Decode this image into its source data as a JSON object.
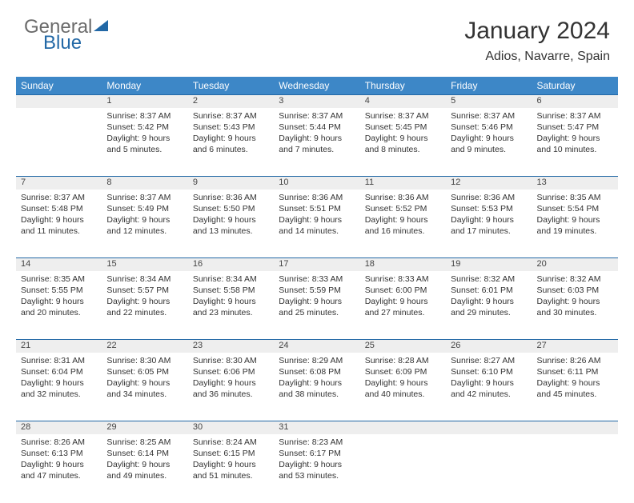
{
  "logo": {
    "text1": "General",
    "text2": "Blue"
  },
  "title": "January 2024",
  "location": "Adios, Navarre, Spain",
  "colors": {
    "header_bg": "#3d87c7",
    "header_text": "#ffffff",
    "daynum_bg": "#eeeeee",
    "row_border": "#2268a6",
    "body_text": "#333333",
    "logo_gray": "#6b6b6b",
    "logo_blue": "#2268a6",
    "page_bg": "#ffffff"
  },
  "weekdays": [
    "Sunday",
    "Monday",
    "Tuesday",
    "Wednesday",
    "Thursday",
    "Friday",
    "Saturday"
  ],
  "weeks": [
    [
      null,
      {
        "n": "1",
        "sunrise": "8:37 AM",
        "sunset": "5:42 PM",
        "daylight": "9 hours and 5 minutes."
      },
      {
        "n": "2",
        "sunrise": "8:37 AM",
        "sunset": "5:43 PM",
        "daylight": "9 hours and 6 minutes."
      },
      {
        "n": "3",
        "sunrise": "8:37 AM",
        "sunset": "5:44 PM",
        "daylight": "9 hours and 7 minutes."
      },
      {
        "n": "4",
        "sunrise": "8:37 AM",
        "sunset": "5:45 PM",
        "daylight": "9 hours and 8 minutes."
      },
      {
        "n": "5",
        "sunrise": "8:37 AM",
        "sunset": "5:46 PM",
        "daylight": "9 hours and 9 minutes."
      },
      {
        "n": "6",
        "sunrise": "8:37 AM",
        "sunset": "5:47 PM",
        "daylight": "9 hours and 10 minutes."
      }
    ],
    [
      {
        "n": "7",
        "sunrise": "8:37 AM",
        "sunset": "5:48 PM",
        "daylight": "9 hours and 11 minutes."
      },
      {
        "n": "8",
        "sunrise": "8:37 AM",
        "sunset": "5:49 PM",
        "daylight": "9 hours and 12 minutes."
      },
      {
        "n": "9",
        "sunrise": "8:36 AM",
        "sunset": "5:50 PM",
        "daylight": "9 hours and 13 minutes."
      },
      {
        "n": "10",
        "sunrise": "8:36 AM",
        "sunset": "5:51 PM",
        "daylight": "9 hours and 14 minutes."
      },
      {
        "n": "11",
        "sunrise": "8:36 AM",
        "sunset": "5:52 PM",
        "daylight": "9 hours and 16 minutes."
      },
      {
        "n": "12",
        "sunrise": "8:36 AM",
        "sunset": "5:53 PM",
        "daylight": "9 hours and 17 minutes."
      },
      {
        "n": "13",
        "sunrise": "8:35 AM",
        "sunset": "5:54 PM",
        "daylight": "9 hours and 19 minutes."
      }
    ],
    [
      {
        "n": "14",
        "sunrise": "8:35 AM",
        "sunset": "5:55 PM",
        "daylight": "9 hours and 20 minutes."
      },
      {
        "n": "15",
        "sunrise": "8:34 AM",
        "sunset": "5:57 PM",
        "daylight": "9 hours and 22 minutes."
      },
      {
        "n": "16",
        "sunrise": "8:34 AM",
        "sunset": "5:58 PM",
        "daylight": "9 hours and 23 minutes."
      },
      {
        "n": "17",
        "sunrise": "8:33 AM",
        "sunset": "5:59 PM",
        "daylight": "9 hours and 25 minutes."
      },
      {
        "n": "18",
        "sunrise": "8:33 AM",
        "sunset": "6:00 PM",
        "daylight": "9 hours and 27 minutes."
      },
      {
        "n": "19",
        "sunrise": "8:32 AM",
        "sunset": "6:01 PM",
        "daylight": "9 hours and 29 minutes."
      },
      {
        "n": "20",
        "sunrise": "8:32 AM",
        "sunset": "6:03 PM",
        "daylight": "9 hours and 30 minutes."
      }
    ],
    [
      {
        "n": "21",
        "sunrise": "8:31 AM",
        "sunset": "6:04 PM",
        "daylight": "9 hours and 32 minutes."
      },
      {
        "n": "22",
        "sunrise": "8:30 AM",
        "sunset": "6:05 PM",
        "daylight": "9 hours and 34 minutes."
      },
      {
        "n": "23",
        "sunrise": "8:30 AM",
        "sunset": "6:06 PM",
        "daylight": "9 hours and 36 minutes."
      },
      {
        "n": "24",
        "sunrise": "8:29 AM",
        "sunset": "6:08 PM",
        "daylight": "9 hours and 38 minutes."
      },
      {
        "n": "25",
        "sunrise": "8:28 AM",
        "sunset": "6:09 PM",
        "daylight": "9 hours and 40 minutes."
      },
      {
        "n": "26",
        "sunrise": "8:27 AM",
        "sunset": "6:10 PM",
        "daylight": "9 hours and 42 minutes."
      },
      {
        "n": "27",
        "sunrise": "8:26 AM",
        "sunset": "6:11 PM",
        "daylight": "9 hours and 45 minutes."
      }
    ],
    [
      {
        "n": "28",
        "sunrise": "8:26 AM",
        "sunset": "6:13 PM",
        "daylight": "9 hours and 47 minutes."
      },
      {
        "n": "29",
        "sunrise": "8:25 AM",
        "sunset": "6:14 PM",
        "daylight": "9 hours and 49 minutes."
      },
      {
        "n": "30",
        "sunrise": "8:24 AM",
        "sunset": "6:15 PM",
        "daylight": "9 hours and 51 minutes."
      },
      {
        "n": "31",
        "sunrise": "8:23 AM",
        "sunset": "6:17 PM",
        "daylight": "9 hours and 53 minutes."
      },
      null,
      null,
      null
    ]
  ],
  "labels": {
    "sunrise": "Sunrise:",
    "sunset": "Sunset:",
    "daylight": "Daylight:"
  }
}
